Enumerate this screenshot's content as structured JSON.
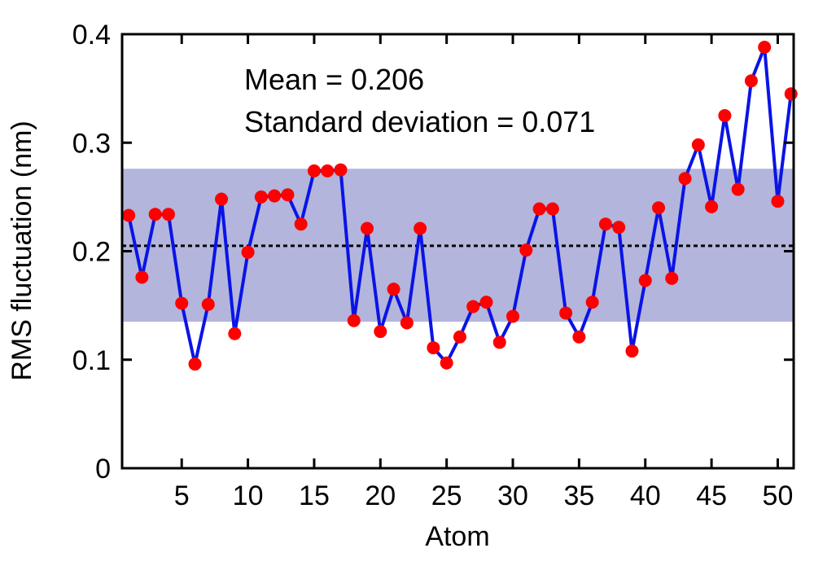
{
  "chart_data": {
    "type": "line",
    "xlabel": "Atom",
    "ylabel": "RMS fluctuation (nm)",
    "xlim": [
      0.5,
      51.2
    ],
    "ylim": [
      0,
      0.4
    ],
    "x_ticks": [
      5,
      10,
      15,
      20,
      25,
      30,
      35,
      40,
      45,
      50
    ],
    "x_tick_labels": [
      "5",
      "10",
      "15",
      "20",
      "25",
      "30",
      "35",
      "40",
      "45",
      "50"
    ],
    "y_ticks": [
      0,
      0.1,
      0.2,
      0.3,
      0.4
    ],
    "y_tick_labels": [
      "0",
      "0.1",
      "0.2",
      "0.3",
      "0.4"
    ],
    "grid": false,
    "annotations": {
      "mean": "Mean = 0.206",
      "std": "Standard deviation = 0.071"
    },
    "mean_line": 0.205,
    "band": [
      0.135,
      0.276
    ],
    "colors": {
      "line": "#0a14e6",
      "marker": "#ff0000",
      "band": "#b3b5dc",
      "mean_line": "#000000"
    },
    "series": [
      {
        "x": [
          1,
          2,
          3,
          4,
          5,
          6,
          7,
          8,
          9,
          10,
          11,
          12,
          13,
          14,
          15,
          16,
          17,
          18,
          19,
          20,
          21,
          22,
          23,
          24,
          25,
          26,
          27,
          28,
          29,
          30,
          31,
          32,
          33,
          34,
          35,
          36,
          37,
          38,
          39,
          40,
          41,
          42,
          43,
          44,
          45,
          46,
          47,
          48,
          49,
          50,
          51
        ],
        "values": [
          0.233,
          0.176,
          0.234,
          0.234,
          0.152,
          0.096,
          0.151,
          0.248,
          0.124,
          0.199,
          0.25,
          0.251,
          0.252,
          0.225,
          0.274,
          0.274,
          0.275,
          0.136,
          0.221,
          0.126,
          0.165,
          0.134,
          0.221,
          0.111,
          0.097,
          0.121,
          0.149,
          0.153,
          0.116,
          0.14,
          0.201,
          0.239,
          0.239,
          0.143,
          0.121,
          0.153,
          0.225,
          0.222,
          0.108,
          0.173,
          0.24,
          0.175,
          0.267,
          0.298,
          0.241,
          0.325,
          0.257,
          0.357,
          0.388,
          0.246,
          0.345
        ]
      }
    ]
  }
}
